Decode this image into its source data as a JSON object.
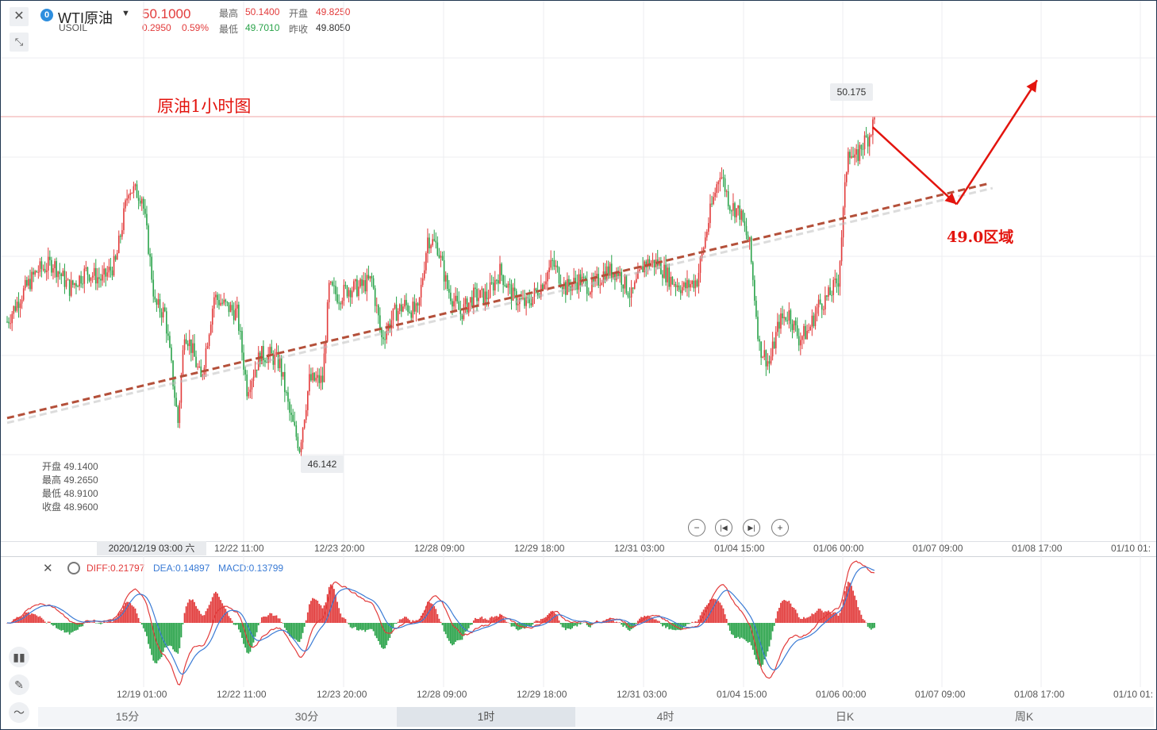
{
  "header": {
    "symbol": "WTI原油",
    "code": "USOIL",
    "price": "50.1000",
    "change": "0.2950",
    "change_pct": "0.59%",
    "high_label": "最高",
    "high": "50.1400",
    "open_label": "开盘",
    "open": "49.8250",
    "low_label": "最低",
    "low": "49.7010",
    "prev_label": "昨收",
    "prev": "49.8050"
  },
  "annotations": {
    "title": "原油1小时图",
    "zone": "49.0区域",
    "high_marker": "50.175",
    "low_marker": "46.142"
  },
  "ohlc_info": {
    "open": "开盘 49.1400",
    "high": "最高 49.2650",
    "low": "最低 48.9100",
    "close": "收盘 48.9600"
  },
  "macd": {
    "diff": "DIFF:0.21797",
    "dea": "DEA:0.14897",
    "macd": "MACD:0.13799"
  },
  "crosshair_time": "2020/12/19 03:00 六",
  "tabs": [
    "15分",
    "30分",
    "1时",
    "4时",
    "日K",
    "周K"
  ],
  "active_tab": "1时",
  "icons": {
    "close": "close-icon",
    "collapse": "collapse-icon",
    "settings": "gear-icon",
    "candle": "candlestick-icon",
    "pen": "pen-icon",
    "indicator": "indicator-icon"
  },
  "colors": {
    "up": "#e23b3b",
    "down": "#2aa34a",
    "trend": "#b4503a",
    "arrow": "#e3140e",
    "dea": "#3a7bd5"
  },
  "chart_data": {
    "type": "candlestick",
    "instrument": "WTI原油 (USOIL)",
    "x_ticks": [
      "12/22 11:00",
      "12/23 20:00",
      "12/28 09:00",
      "12/29 18:00",
      "12/31 03:00",
      "01/04 15:00",
      "01/06 00:00",
      "01/07 09:00",
      "01/08 17:00",
      "01/10 01:"
    ],
    "macd_x_ticks": [
      "12/19 01:00",
      "12/22 11:00",
      "12/23 20:00",
      "12/28 09:00",
      "12/29 18:00",
      "12/31 03:00",
      "01/04 15:00",
      "01/06 00:00",
      "01/07 09:00",
      "01/08 17:00",
      "01/10 01:"
    ],
    "price_path": [
      [
        0,
        47.7
      ],
      [
        8,
        48.0
      ],
      [
        18,
        48.3
      ],
      [
        28,
        48.4
      ],
      [
        38,
        48.1
      ],
      [
        48,
        48.3
      ],
      [
        58,
        48.2
      ],
      [
        66,
        48.4
      ],
      [
        74,
        49.3
      ],
      [
        82,
        49.2
      ],
      [
        86,
        48.6
      ],
      [
        90,
        47.9
      ],
      [
        96,
        47.8
      ],
      [
        104,
        46.5
      ],
      [
        108,
        47.6
      ],
      [
        112,
        47.4
      ],
      [
        118,
        47.0
      ],
      [
        126,
        48.0
      ],
      [
        132,
        47.9
      ],
      [
        140,
        47.8
      ],
      [
        146,
        46.9
      ],
      [
        154,
        47.3
      ],
      [
        160,
        47.3
      ],
      [
        166,
        47.2
      ],
      [
        172,
        46.6
      ],
      [
        178,
        46.2
      ],
      [
        184,
        47.0
      ],
      [
        192,
        47.0
      ],
      [
        196,
        48.1
      ],
      [
        202,
        48.0
      ],
      [
        208,
        48.1
      ],
      [
        214,
        48.1
      ],
      [
        222,
        48.2
      ],
      [
        228,
        47.5
      ],
      [
        236,
        47.8
      ],
      [
        242,
        47.9
      ],
      [
        250,
        47.8
      ],
      [
        256,
        48.7
      ],
      [
        262,
        48.6
      ],
      [
        268,
        48.1
      ],
      [
        276,
        47.8
      ],
      [
        284,
        48.0
      ],
      [
        292,
        48.0
      ],
      [
        300,
        48.3
      ],
      [
        308,
        48.0
      ],
      [
        316,
        47.9
      ],
      [
        324,
        48.1
      ],
      [
        332,
        48.4
      ],
      [
        340,
        48.1
      ],
      [
        348,
        48.2
      ],
      [
        356,
        48.1
      ],
      [
        364,
        48.3
      ],
      [
        372,
        48.3
      ],
      [
        380,
        48.0
      ],
      [
        388,
        48.4
      ],
      [
        396,
        48.4
      ],
      [
        404,
        48.2
      ],
      [
        412,
        48.1
      ],
      [
        420,
        48.2
      ],
      [
        428,
        49.0
      ],
      [
        434,
        49.5
      ],
      [
        440,
        49.1
      ],
      [
        446,
        49.0
      ],
      [
        452,
        48.6
      ],
      [
        458,
        47.4
      ],
      [
        464,
        47.2
      ],
      [
        470,
        47.7
      ],
      [
        476,
        47.8
      ],
      [
        482,
        47.5
      ],
      [
        488,
        47.6
      ],
      [
        494,
        47.9
      ],
      [
        500,
        48.0
      ],
      [
        506,
        48.2
      ],
      [
        512,
        49.8
      ],
      [
        516,
        49.6
      ],
      [
        520,
        49.8
      ],
      [
        524,
        49.9
      ],
      [
        528,
        50.1
      ]
    ],
    "trend_line": [
      [
        0,
        46.55
      ],
      [
        598,
        49.35
      ]
    ],
    "forecast_path": [
      [
        527,
        50.02
      ],
      [
        578,
        49.1
      ],
      [
        627,
        50.58
      ]
    ],
    "annotations": {
      "high": 50.175,
      "low": 46.142,
      "zone": 49.0
    },
    "y_range_approx": [
      46.0,
      50.6
    ],
    "macd_series": {
      "diff_last": 0.21797,
      "dea_last": 0.14897,
      "macd_last": 0.13799
    }
  }
}
